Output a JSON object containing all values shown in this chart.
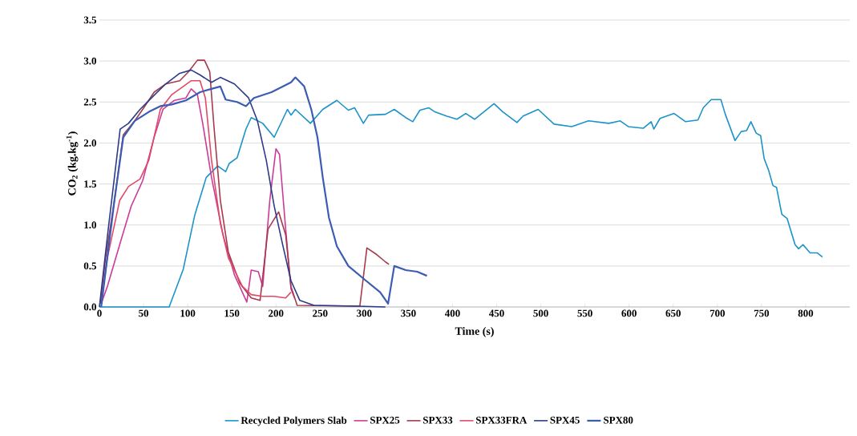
{
  "chart_data": {
    "type": "line",
    "xlabel": "Time (s)",
    "ylabel": "CO$_{2}$ (kg.kg$^{-1}$)",
    "xlim": [
      0,
      850
    ],
    "ylim": [
      0,
      3.5
    ],
    "xticks": [
      0,
      50,
      100,
      150,
      200,
      250,
      300,
      350,
      400,
      450,
      500,
      550,
      600,
      650,
      700,
      750,
      800
    ],
    "yticks": [
      {
        "value": 0,
        "label": "0.0"
      },
      {
        "value": 0.5,
        "label": "0.5"
      },
      {
        "value": 1,
        "label": "1.0"
      },
      {
        "value": 1.5,
        "label": "1.5"
      },
      {
        "value": 2,
        "label": "2.0"
      },
      {
        "value": 2.5,
        "label": "2.5"
      },
      {
        "value": 3,
        "label": "3.0"
      },
      {
        "value": 3.5,
        "label": "3.5"
      }
    ],
    "grid": "y",
    "legend": "bottom",
    "marker": "none",
    "line_style": "solid",
    "series": [
      {
        "name": "Recycled Polymers Slab",
        "color": "#1b93c9",
        "x": [
          0,
          79,
          95,
          108,
          121,
          134,
          143,
          147,
          156,
          166,
          172,
          185,
          198,
          213,
          217,
          222,
          239,
          253,
          269,
          282,
          289,
          299,
          305,
          324,
          334,
          347,
          355,
          363,
          373,
          380,
          393,
          405,
          415,
          425,
          447,
          457,
          473,
          480,
          497,
          515,
          535,
          554,
          577,
          590,
          599,
          616,
          625,
          628,
          635,
          651,
          664,
          678,
          684,
          693,
          704,
          709,
          720,
          727,
          733,
          738,
          744,
          749,
          753,
          758,
          763,
          767,
          773,
          779,
          788,
          792,
          797,
          805,
          813,
          819
        ],
        "values": [
          0,
          0,
          0.46,
          1.12,
          1.58,
          1.72,
          1.65,
          1.75,
          1.82,
          2.17,
          2.31,
          2.24,
          2.07,
          2.41,
          2.34,
          2.41,
          2.24,
          2.41,
          2.52,
          2.4,
          2.43,
          2.24,
          2.34,
          2.35,
          2.41,
          2.31,
          2.26,
          2.4,
          2.43,
          2.38,
          2.33,
          2.29,
          2.36,
          2.29,
          2.48,
          2.38,
          2.25,
          2.33,
          2.41,
          2.23,
          2.2,
          2.27,
          2.24,
          2.27,
          2.2,
          2.18,
          2.26,
          2.17,
          2.3,
          2.36,
          2.26,
          2.28,
          2.43,
          2.53,
          2.53,
          2.35,
          2.03,
          2.14,
          2.15,
          2.26,
          2.12,
          2.09,
          1.81,
          1.67,
          1.48,
          1.46,
          1.13,
          1.08,
          0.76,
          0.71,
          0.76,
          0.66,
          0.66,
          0.61
        ]
      },
      {
        "name": "SPX25",
        "color": "#cc3a99",
        "x": [
          2,
          9,
          23.5,
          36,
          49,
          62,
          72,
          85,
          98,
          104,
          111,
          117,
          127,
          140,
          153,
          167,
          172,
          180,
          185,
          193,
          200,
          204,
          211,
          217,
          221
        ],
        "values": [
          0.04,
          0.25,
          0.78,
          1.23,
          1.54,
          2.07,
          2.41,
          2.52,
          2.55,
          2.66,
          2.59,
          2.24,
          1.58,
          0.88,
          0.39,
          0.06,
          0.45,
          0.43,
          0.25,
          1.3,
          1.93,
          1.86,
          0.95,
          0.22,
          0.11
        ]
      },
      {
        "name": "SPX33",
        "color": "#a63a4c",
        "x": [
          1,
          7,
          17,
          27,
          40,
          49,
          62,
          75,
          91,
          101,
          111,
          119,
          125,
          130,
          137,
          146,
          159,
          172,
          182,
          191,
          203,
          211,
          217,
          224,
          295,
          303,
          314,
          324,
          328
        ],
        "values": [
          0.04,
          0.6,
          1.3,
          2.1,
          2.27,
          2.41,
          2.62,
          2.72,
          2.76,
          2.87,
          3.01,
          3.01,
          2.87,
          2.17,
          1.3,
          0.67,
          0.29,
          0.11,
          0.08,
          0.95,
          1.16,
          0.88,
          0.25,
          0.02,
          0.01,
          0.72,
          0.64,
          0.55,
          0.52
        ]
      },
      {
        "name": "SPX33FRA",
        "color": "#e04a66",
        "x": [
          2,
          9,
          23,
          33,
          46,
          56,
          69,
          82,
          95,
          104,
          114,
          120,
          127,
          137,
          146,
          162,
          172,
          185,
          198,
          211,
          217
        ],
        "values": [
          0.04,
          0.6,
          1.3,
          1.47,
          1.56,
          1.79,
          2.41,
          2.59,
          2.69,
          2.76,
          2.76,
          2.55,
          1.79,
          1.02,
          0.6,
          0.25,
          0.15,
          0.13,
          0.13,
          0.11,
          0.18
        ]
      },
      {
        "name": "SPX45",
        "color": "#2c3a8a",
        "x": [
          0,
          10,
          23.5,
          33,
          46,
          59,
          75,
          91,
          104,
          114,
          127,
          137,
          153,
          169,
          179,
          189,
          198,
          208,
          217,
          227,
          243,
          292,
          324
        ],
        "values": [
          0,
          0.95,
          2.17,
          2.24,
          2.41,
          2.55,
          2.72,
          2.85,
          2.89,
          2.83,
          2.74,
          2.8,
          2.72,
          2.55,
          2.27,
          1.79,
          1.23,
          0.74,
          0.32,
          0.08,
          0.02,
          0.01,
          0
        ]
      },
      {
        "name": "SPX80",
        "color": "#3c5cb4",
        "x": [
          2,
          17,
          27,
          40,
          56,
          69,
          82,
          98,
          114,
          127,
          137,
          143,
          156,
          166,
          175,
          195,
          208,
          217,
          222,
          232,
          240,
          247,
          253,
          260,
          269,
          282,
          302,
          318,
          327,
          334,
          347,
          360,
          371
        ],
        "values": [
          0,
          1.3,
          2.07,
          2.27,
          2.38,
          2.45,
          2.47,
          2.52,
          2.62,
          2.66,
          2.69,
          2.53,
          2.5,
          2.45,
          2.55,
          2.62,
          2.69,
          2.74,
          2.8,
          2.69,
          2.41,
          2.07,
          1.58,
          1.09,
          0.74,
          0.5,
          0.32,
          0.18,
          0.04,
          0.5,
          0.45,
          0.43,
          0.38
        ]
      }
    ]
  }
}
